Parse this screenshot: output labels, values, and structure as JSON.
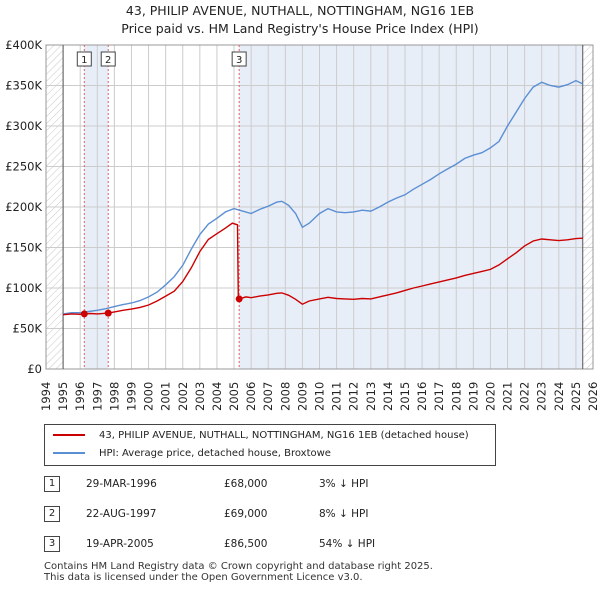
{
  "title": {
    "line1": "43, PHILIP AVENUE, NUTHALL, NOTTINGHAM, NG16 1EB",
    "line2": "Price paid vs. HM Land Registry's House Price Index (HPI)"
  },
  "colors": {
    "price": "#cc0000",
    "hpi": "#5b8fd4",
    "shade": "#e8eef8",
    "grid": "#cccccc",
    "vline": "#e06060"
  },
  "chart_data": {
    "type": "line",
    "title": "Price paid vs. HM Land Registry's House Price Index (HPI)",
    "xlim": [
      1994,
      2026
    ],
    "ylim": [
      0,
      400000
    ],
    "xticks": [
      "1994",
      "1995",
      "1996",
      "1997",
      "1998",
      "1999",
      "2000",
      "2001",
      "2002",
      "2003",
      "2004",
      "2005",
      "2006",
      "2007",
      "2008",
      "2009",
      "2010",
      "2011",
      "2012",
      "2013",
      "2014",
      "2015",
      "2016",
      "2017",
      "2018",
      "2019",
      "2020",
      "2021",
      "2022",
      "2023",
      "2024",
      "2025",
      "2026"
    ],
    "yticks": [
      {
        "value": 0,
        "label": "£0"
      },
      {
        "value": 50000,
        "label": "£50K"
      },
      {
        "value": 100000,
        "label": "£100K"
      },
      {
        "value": 150000,
        "label": "£150K"
      },
      {
        "value": 200000,
        "label": "£200K"
      },
      {
        "value": 250000,
        "label": "£250K"
      },
      {
        "value": 300000,
        "label": "£300K"
      },
      {
        "value": 350000,
        "label": "£350K"
      },
      {
        "value": 400000,
        "label": "£400K"
      }
    ],
    "data_start": 1995.0,
    "data_end": 2025.4,
    "shaded_ranges": [
      [
        1996.24,
        1997.64
      ],
      [
        2005.3,
        2025.4
      ]
    ],
    "series": [
      {
        "name": "43, PHILIP AVENUE, NUTHALL, NOTTINGHAM, NG16 1EB (detached house)",
        "color": "#cc0000",
        "points": [
          [
            1995.0,
            67000
          ],
          [
            1995.5,
            68000
          ],
          [
            1996.0,
            67500
          ],
          [
            1996.24,
            68000
          ],
          [
            1996.6,
            68500
          ],
          [
            1997.0,
            68000
          ],
          [
            1997.64,
            69000
          ],
          [
            1998.0,
            70500
          ],
          [
            1998.5,
            72500
          ],
          [
            1999.0,
            74000
          ],
          [
            1999.5,
            76000
          ],
          [
            2000.0,
            79000
          ],
          [
            2000.5,
            84000
          ],
          [
            2001.0,
            90000
          ],
          [
            2001.5,
            96000
          ],
          [
            2002.0,
            108000
          ],
          [
            2002.5,
            125000
          ],
          [
            2003.0,
            145000
          ],
          [
            2003.5,
            160000
          ],
          [
            2004.0,
            167000
          ],
          [
            2004.5,
            174000
          ],
          [
            2004.9,
            180000
          ],
          [
            2005.2,
            178000
          ],
          [
            2005.25,
            87500
          ],
          [
            2005.3,
            86500
          ],
          [
            2005.7,
            89000
          ],
          [
            2006.0,
            88000
          ],
          [
            2006.5,
            90000
          ],
          [
            2007.0,
            91500
          ],
          [
            2007.5,
            93500
          ],
          [
            2007.8,
            94000
          ],
          [
            2008.2,
            91000
          ],
          [
            2008.6,
            86000
          ],
          [
            2009.0,
            80000
          ],
          [
            2009.4,
            84000
          ],
          [
            2010.0,
            86500
          ],
          [
            2010.5,
            88500
          ],
          [
            2011.0,
            87000
          ],
          [
            2011.5,
            86500
          ],
          [
            2012.0,
            86000
          ],
          [
            2012.5,
            87000
          ],
          [
            2013.0,
            86500
          ],
          [
            2013.5,
            89000
          ],
          [
            2014.0,
            91500
          ],
          [
            2014.5,
            94000
          ],
          [
            2015.0,
            97000
          ],
          [
            2015.5,
            100000
          ],
          [
            2016.0,
            102500
          ],
          [
            2016.5,
            105000
          ],
          [
            2017.0,
            107500
          ],
          [
            2017.5,
            110000
          ],
          [
            2018.0,
            112500
          ],
          [
            2018.5,
            115500
          ],
          [
            2019.0,
            118000
          ],
          [
            2019.5,
            120500
          ],
          [
            2020.0,
            123000
          ],
          [
            2020.5,
            128500
          ],
          [
            2021.0,
            136000
          ],
          [
            2021.5,
            143500
          ],
          [
            2022.0,
            152000
          ],
          [
            2022.5,
            158000
          ],
          [
            2023.0,
            160500
          ],
          [
            2023.5,
            159500
          ],
          [
            2024.0,
            158500
          ],
          [
            2024.5,
            159500
          ],
          [
            2025.0,
            161000
          ],
          [
            2025.4,
            161500
          ]
        ]
      },
      {
        "name": "HPI: Average price, detached house, Broxtowe",
        "color": "#5b8fd4",
        "points": [
          [
            1995.0,
            68000
          ],
          [
            1995.5,
            69500
          ],
          [
            1996.0,
            69500
          ],
          [
            1996.5,
            71000
          ],
          [
            1997.0,
            72500
          ],
          [
            1997.5,
            74500
          ],
          [
            1998.0,
            77000
          ],
          [
            1998.5,
            79500
          ],
          [
            1999.0,
            81500
          ],
          [
            1999.5,
            84500
          ],
          [
            2000.0,
            89000
          ],
          [
            2000.5,
            95000
          ],
          [
            2001.0,
            104000
          ],
          [
            2001.5,
            114000
          ],
          [
            2002.0,
            128000
          ],
          [
            2002.5,
            148000
          ],
          [
            2003.0,
            166000
          ],
          [
            2003.5,
            179000
          ],
          [
            2004.0,
            186000
          ],
          [
            2004.5,
            194000
          ],
          [
            2005.0,
            198000
          ],
          [
            2005.5,
            195000
          ],
          [
            2006.0,
            192000
          ],
          [
            2006.5,
            197000
          ],
          [
            2007.0,
            201000
          ],
          [
            2007.5,
            206000
          ],
          [
            2007.8,
            207000
          ],
          [
            2008.2,
            202000
          ],
          [
            2008.6,
            192000
          ],
          [
            2009.0,
            175000
          ],
          [
            2009.4,
            180000
          ],
          [
            2010.0,
            192000
          ],
          [
            2010.5,
            198000
          ],
          [
            2011.0,
            194000
          ],
          [
            2011.5,
            193000
          ],
          [
            2012.0,
            194000
          ],
          [
            2012.5,
            196000
          ],
          [
            2013.0,
            195000
          ],
          [
            2013.5,
            200000
          ],
          [
            2014.0,
            206000
          ],
          [
            2014.5,
            211000
          ],
          [
            2015.0,
            215000
          ],
          [
            2015.5,
            222000
          ],
          [
            2016.0,
            228000
          ],
          [
            2016.5,
            234000
          ],
          [
            2017.0,
            241000
          ],
          [
            2017.5,
            247000
          ],
          [
            2018.0,
            253000
          ],
          [
            2018.5,
            260000
          ],
          [
            2019.0,
            264000
          ],
          [
            2019.5,
            267000
          ],
          [
            2020.0,
            273000
          ],
          [
            2020.5,
            281000
          ],
          [
            2021.0,
            300000
          ],
          [
            2021.5,
            317000
          ],
          [
            2022.0,
            334000
          ],
          [
            2022.5,
            348000
          ],
          [
            2023.0,
            354000
          ],
          [
            2023.5,
            350000
          ],
          [
            2024.0,
            348000
          ],
          [
            2024.5,
            351000
          ],
          [
            2025.0,
            356000
          ],
          [
            2025.4,
            352000
          ]
        ]
      }
    ],
    "markers": [
      {
        "label": "1",
        "x": 1996.24,
        "y": 68000
      },
      {
        "label": "2",
        "x": 1997.64,
        "y": 69000
      },
      {
        "label": "3",
        "x": 2005.3,
        "y": 86500
      }
    ]
  },
  "legend": {
    "items": [
      {
        "label": "43, PHILIP AVENUE, NUTHALL, NOTTINGHAM, NG16 1EB (detached house)",
        "color": "#cc0000"
      },
      {
        "label": "HPI: Average price, detached house, Broxtowe",
        "color": "#5b8fd4"
      }
    ]
  },
  "sales": [
    {
      "num": "1",
      "date": "29-MAR-1996",
      "price": "£68,000",
      "pct": "3% ↓ HPI"
    },
    {
      "num": "2",
      "date": "22-AUG-1997",
      "price": "£69,000",
      "pct": "8% ↓ HPI"
    },
    {
      "num": "3",
      "date": "19-APR-2005",
      "price": "£86,500",
      "pct": "54% ↓ HPI"
    }
  ],
  "footer": {
    "line1": "Contains HM Land Registry data © Crown copyright and database right 2025.",
    "line2": "This data is licensed under the Open Government Licence v3.0."
  }
}
